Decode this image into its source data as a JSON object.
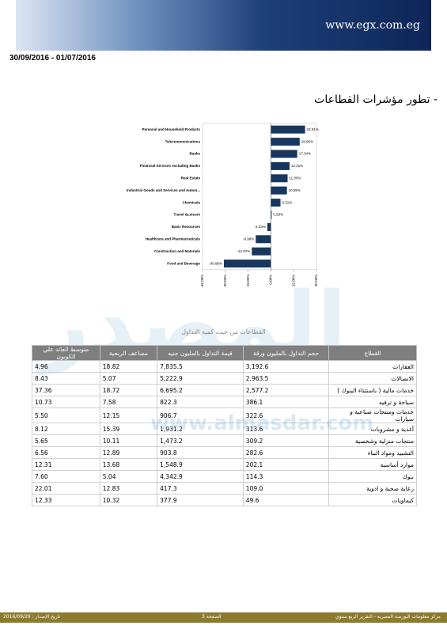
{
  "header": {
    "site": "www.egx.com.eg",
    "date_range": "30/09/2016 - 01/07/2016",
    "section_title": "- تطور مؤشرات القطاعات"
  },
  "chart_data": {
    "type": "bar",
    "orientation": "horizontal",
    "color": "#17375e",
    "categories": [
      "Personal and Household Products",
      "Telecommunications",
      "Banks",
      "Financial Services excluding Banks",
      "Real Estate",
      "Industrial Goods and Services and Autom...",
      "Chemicals",
      "Travel &Leisure",
      "Basic Resources",
      "Healthcare and Pharmaceuticals",
      "Construction and Materials",
      "Food and Beverage"
    ],
    "values": [
      22.51,
      18.96,
      17.34,
      12.31,
      11.0,
      10.55,
      6.31,
      0.5,
      -2.33,
      -9.98,
      -12.57,
      -30.96
    ],
    "value_labels": [
      "22.51%",
      "18.96%",
      "17.34%",
      "12.31%",
      "11.00%",
      "10.55%",
      "6.31%",
      "0.50%",
      "-2.33%",
      "-9.98%",
      "-12.57%",
      "-30.96%"
    ],
    "xlim": [
      -45,
      30
    ],
    "xticks": [
      {
        "value": -45,
        "label": "-45.00%"
      },
      {
        "value": -30,
        "label": "-30.00%"
      },
      {
        "value": -15,
        "label": "-15.00%"
      },
      {
        "value": 0,
        "label": "0.00%"
      },
      {
        "value": 15,
        "label": "15.00%"
      },
      {
        "value": 30,
        "label": "30.00%"
      }
    ]
  },
  "table": {
    "title": "القطاعات من حيث كمية التداول",
    "columns": [
      "القطاع",
      "حجم التداول بالمليون ورقة",
      "قيمة التداول بالمليون جنيه",
      "مضاعف الربحية",
      "متوسط العائد علي الكوبون"
    ],
    "rows": [
      [
        "العقارات",
        "3,192.6",
        "7,835.5",
        "18.82",
        "4.96"
      ],
      [
        "الاتصالات",
        "2,963.5",
        "5,222.9",
        "5.07",
        "8.43"
      ],
      [
        "خدمات مالية ( باستثناء البنوك )",
        "2,577.2",
        "6,695.2",
        "18.72",
        "37.36"
      ],
      [
        "سياحة و ترفيه",
        "386.1",
        "822.3",
        "7.58",
        "10.73"
      ],
      [
        "خدمات ومنتجات صناعية و سيارات",
        "322.6",
        "906.7",
        "12.15",
        "5.50"
      ],
      [
        "أغذية و مشروبات",
        "313.6",
        "1,931.2",
        "15.39",
        "8.12"
      ],
      [
        "منتجات منزلية وشخصية",
        "309.2",
        "1,473.2",
        "10.11",
        "5.65"
      ],
      [
        "التشييد ومواد البناء",
        "282.6",
        "903.8",
        "12.89",
        "6.56"
      ],
      [
        "موارد أساسية",
        "202.1",
        "1,548.9",
        "13.68",
        "12.31"
      ],
      [
        "بنوك",
        "114.3",
        "4,342.9",
        "5.04",
        "7.60"
      ],
      [
        "رعاية صحية و ادوية",
        "109.0",
        "417.3",
        "12.83",
        "22.01"
      ],
      [
        "كيماويات",
        "49.6",
        "377.9",
        "10.32",
        "12.33"
      ]
    ]
  },
  "watermark": {
    "logo": "المصدر",
    "url": "www.almasdar.com"
  },
  "footer": {
    "right": "مركز معلومات البورصة المصرية - التقرير الربع سنوي",
    "center": "الصفحة 3",
    "left": "تاريخ الإصدار : 2016/09/29"
  }
}
